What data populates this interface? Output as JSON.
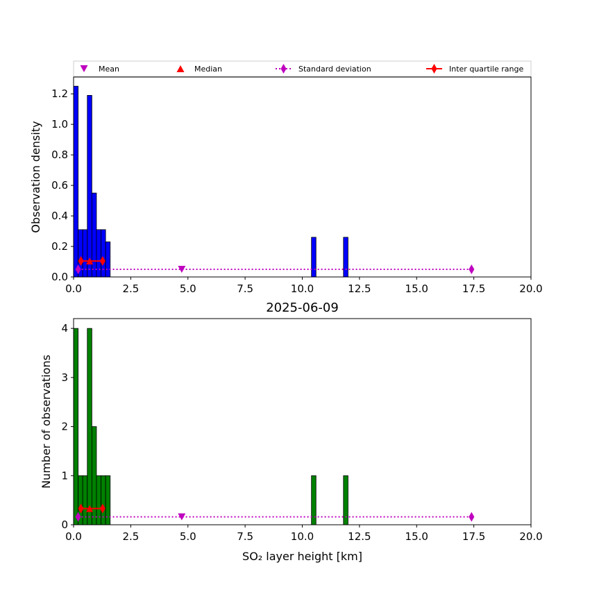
{
  "title": "2025-06-09",
  "legend": {
    "placement": "above-top",
    "entries": [
      {
        "label": "Mean",
        "marker": "triangle-down",
        "color": "#bf00bf"
      },
      {
        "label": "Median",
        "marker": "triangle-up",
        "color": "#ff0000"
      },
      {
        "label": "Standard deviation",
        "marker": "thin-diamond",
        "linestyle": "dotted",
        "color": "#bf00bf"
      },
      {
        "label": "Inter quartile range",
        "marker": "thin-diamond",
        "linestyle": "solid",
        "color": "#ff0000"
      }
    ]
  },
  "chart_data": [
    {
      "type": "bar",
      "ylabel": "Observation density",
      "xlabel": "",
      "xlim": [
        0,
        20
      ],
      "ylim": [
        0,
        1.31
      ],
      "xticks": [
        "0.0",
        "2.5",
        "5.0",
        "7.5",
        "10.0",
        "12.5",
        "15.0",
        "17.5",
        "20.0"
      ],
      "yticks": [
        "0.0",
        "0.2",
        "0.4",
        "0.6",
        "0.8",
        "1.0",
        "1.2"
      ],
      "bar_color": "#0000ff",
      "bin_width": 0.2,
      "bins": [
        {
          "x0": 0.0,
          "value": 1.25
        },
        {
          "x0": 0.2,
          "value": 0.31
        },
        {
          "x0": 0.4,
          "value": 0.31
        },
        {
          "x0": 0.6,
          "value": 1.19
        },
        {
          "x0": 0.8,
          "value": 0.55
        },
        {
          "x0": 1.0,
          "value": 0.31
        },
        {
          "x0": 1.2,
          "value": 0.31
        },
        {
          "x0": 1.4,
          "value": 0.23
        },
        {
          "x0": 10.4,
          "value": 0.26
        },
        {
          "x0": 11.8,
          "value": 0.26
        }
      ],
      "stats": {
        "level": 0.05,
        "mean": 4.73,
        "median": 0.7,
        "std_range": [
          0.2,
          17.4
        ],
        "iqr": [
          0.32,
          1.27
        ]
      }
    },
    {
      "type": "bar",
      "ylabel": "Number of observations",
      "xlabel": "SO₂ layer height [km]",
      "xlim": [
        0,
        20
      ],
      "ylim": [
        0,
        4.2
      ],
      "xticks": [
        "0.0",
        "2.5",
        "5.0",
        "7.5",
        "10.0",
        "12.5",
        "15.0",
        "17.5",
        "20.0"
      ],
      "yticks": [
        "0",
        "1",
        "2",
        "3",
        "4"
      ],
      "bar_color": "#008000",
      "bin_width": 0.2,
      "bins": [
        {
          "x0": 0.0,
          "value": 4
        },
        {
          "x0": 0.2,
          "value": 1
        },
        {
          "x0": 0.4,
          "value": 1
        },
        {
          "x0": 0.6,
          "value": 4
        },
        {
          "x0": 0.8,
          "value": 2
        },
        {
          "x0": 1.0,
          "value": 1
        },
        {
          "x0": 1.2,
          "value": 1
        },
        {
          "x0": 1.4,
          "value": 1
        },
        {
          "x0": 10.4,
          "value": 1
        },
        {
          "x0": 11.8,
          "value": 1
        }
      ],
      "stats": {
        "level": 0.16,
        "mean": 4.73,
        "median": 0.7,
        "std_range": [
          0.2,
          17.4
        ],
        "iqr": [
          0.32,
          1.27
        ]
      }
    }
  ]
}
